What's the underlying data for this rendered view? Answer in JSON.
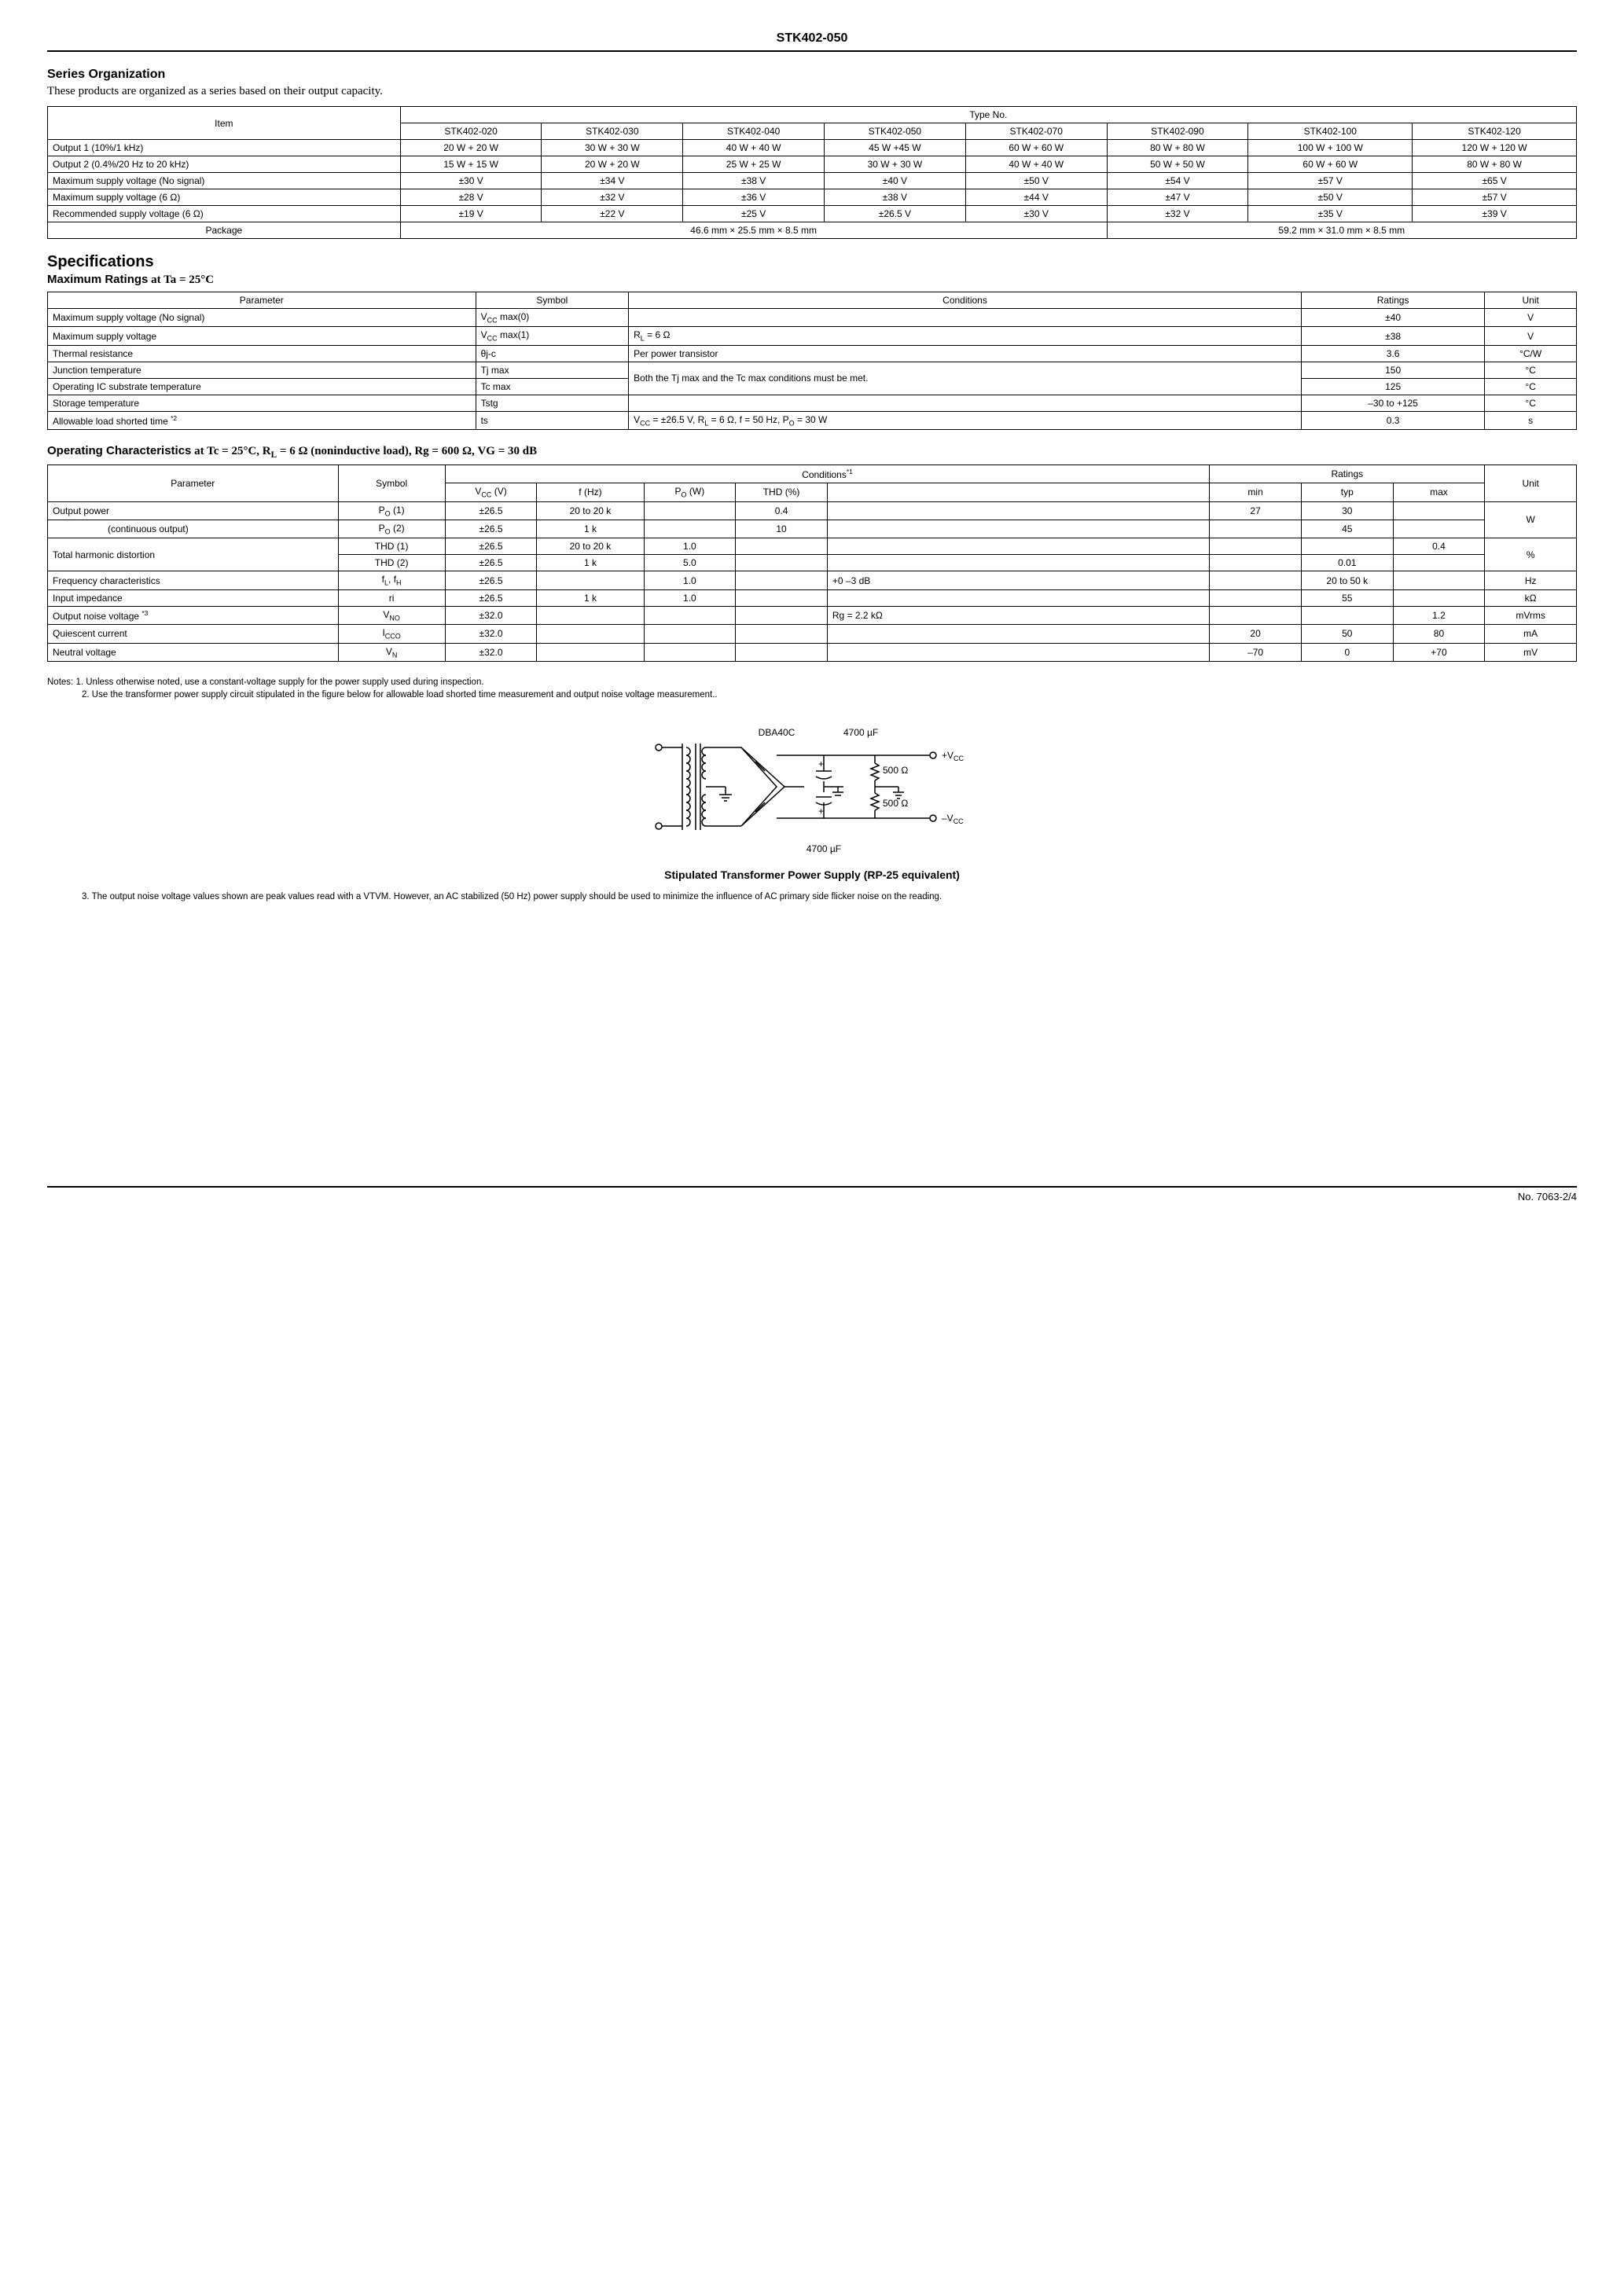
{
  "header": {
    "title": "STK402-050"
  },
  "series": {
    "heading": "Series Organization",
    "intro": "These products are organized as a series based on their output capacity.",
    "item_label": "Item",
    "type_no_label": "Type No.",
    "models": [
      "STK402-020",
      "STK402-030",
      "STK402-040",
      "STK402-050",
      "STK402-070",
      "STK402-090",
      "STK402-100",
      "STK402-120"
    ],
    "rows": [
      {
        "label": "Output 1 (10%/1 kHz)",
        "vals": [
          "20 W + 20 W",
          "30 W + 30 W",
          "40 W + 40 W",
          "45 W +45 W",
          "60 W + 60 W",
          "80 W + 80 W",
          "100 W + 100 W",
          "120 W + 120 W"
        ]
      },
      {
        "label": "Output 2 (0.4%/20 Hz to 20 kHz)",
        "vals": [
          "15 W + 15 W",
          "20 W + 20 W",
          "25 W + 25 W",
          "30 W + 30 W",
          "40 W + 40 W",
          "50 W + 50 W",
          "60 W + 60 W",
          "80 W + 80 W"
        ]
      },
      {
        "label": "Maximum supply voltage (No signal)",
        "vals": [
          "±30 V",
          "±34 V",
          "±38 V",
          "±40 V",
          "±50 V",
          "±54 V",
          "±57 V",
          "±65 V"
        ]
      },
      {
        "label": "Maximum supply voltage (6 Ω)",
        "vals": [
          "±28 V",
          "±32 V",
          "±36 V",
          "±38 V",
          "±44 V",
          "±47 V",
          "±50 V",
          "±57 V"
        ]
      },
      {
        "label": "Recommended supply voltage (6 Ω)",
        "vals": [
          "±19 V",
          "±22 V",
          "±25 V",
          "±26.5 V",
          "±30 V",
          "±32 V",
          "±35 V",
          "±39 V"
        ]
      }
    ],
    "package_label": "Package",
    "package1": "46.6 mm × 25.5 mm × 8.5 mm",
    "package2": "59.2 mm × 31.0 mm × 8.5 mm"
  },
  "specs_heading": "Specifications",
  "max_ratings": {
    "heading_prefix": "Maximum Ratings",
    "heading_cond": " at Ta = 25°C",
    "cols": [
      "Parameter",
      "Symbol",
      "Conditions",
      "Ratings",
      "Unit"
    ],
    "rows": [
      {
        "param": "Maximum supply voltage (No signal)",
        "sym": "V<sub>CC</sub> max(0)",
        "cond": "",
        "rat": "±40",
        "unit": "V"
      },
      {
        "param": "Maximum supply voltage",
        "sym": "V<sub>CC</sub> max(1)",
        "cond": "R<sub>L</sub> = 6 Ω",
        "rat": "±38",
        "unit": "V"
      },
      {
        "param": "Thermal resistance",
        "sym": "θj-c",
        "cond": "Per power transistor",
        "rat": "3.6",
        "unit": "°C/W"
      },
      {
        "param": "Junction temperature",
        "sym": "Tj max",
        "cond": "__SPAN__",
        "rat": "150",
        "unit": "°C"
      },
      {
        "param": "Operating IC substrate temperature",
        "sym": "Tc max",
        "cond": "",
        "rat": "125",
        "unit": "°C"
      },
      {
        "param": "Storage temperature",
        "sym": "Tstg",
        "cond": "",
        "rat": "–30 to +125",
        "unit": "°C"
      },
      {
        "param": "Allowable load shorted time <span class='sup'>*2</span>",
        "sym": "ts",
        "cond": "V<sub>CC</sub> = ±26.5 V, R<sub>L</sub> = 6 Ω, f = 50 Hz, P<sub>O</sub> = 30 W",
        "rat": "0.3",
        "unit": "s"
      }
    ],
    "span_cond": "Both the Tj max and the Tc max conditions must be met."
  },
  "op_char": {
    "heading_prefix": "Operating Characteristics",
    "heading_cond": " at Tc = 25°C, R<sub>L</sub> = 6 Ω (noninductive load), Rg = 600 Ω, VG = 30 dB",
    "hdr": {
      "param": "Parameter",
      "sym": "Symbol",
      "cond": "Conditions<span class='sup'>*1</span>",
      "ratings": "Ratings",
      "unit": "Unit",
      "vcc": "V<sub>CC</sub> (V)",
      "fhz": "f (Hz)",
      "pow": "P<sub>O</sub> (W)",
      "thd": "THD (%)",
      "blank": "",
      "min": "min",
      "typ": "typ",
      "max": "max"
    },
    "rows": [
      {
        "param": "Output power",
        "sym": "P<sub>O</sub> (1)",
        "vcc": "±26.5",
        "f": "20 to 20 k",
        "po": "",
        "thd": "0.4",
        "extra": "",
        "min": "27",
        "typ": "30",
        "max": "",
        "unit": "W",
        "unit_rowspan": 2,
        "param_rowspan": 1
      },
      {
        "param": "<span style='padding-left:70px'>(continuous output)</span>",
        "sym": "P<sub>O</sub> (2)",
        "vcc": "±26.5",
        "f": "1 k",
        "po": "",
        "thd": "10",
        "extra": "",
        "min": "",
        "typ": "45",
        "max": ""
      },
      {
        "param": "Total harmonic distortion",
        "sym": "THD (1)",
        "vcc": "±26.5",
        "f": "20 to 20 k",
        "po": "1.0",
        "thd": "",
        "extra": "",
        "min": "",
        "typ": "",
        "max": "0.4",
        "unit": "%",
        "unit_rowspan": 2,
        "param_rowspan": 2
      },
      {
        "sym": "THD (2)",
        "vcc": "±26.5",
        "f": "1 k",
        "po": "5.0",
        "thd": "",
        "extra": "",
        "min": "",
        "typ": "0.01",
        "max": ""
      },
      {
        "param": "Frequency characteristics",
        "sym": "f<sub>L</sub>, f<sub>H</sub>",
        "vcc": "±26.5",
        "f": "",
        "po": "1.0",
        "thd": "",
        "extra": "+0  –3 dB",
        "min": "",
        "typ": "20 to 50 k",
        "max": "",
        "unit": "Hz"
      },
      {
        "param": "Input impedance",
        "sym": "ri",
        "vcc": "±26.5",
        "f": "1 k",
        "po": "1.0",
        "thd": "",
        "extra": "",
        "min": "",
        "typ": "55",
        "max": "",
        "unit": "kΩ"
      },
      {
        "param": "Output noise voltage <span class='sup'>*3</span>",
        "sym": "V<sub>NO</sub>",
        "vcc": "±32.0",
        "f": "",
        "po": "",
        "thd": "",
        "extra": "Rg = 2.2 kΩ",
        "min": "",
        "typ": "",
        "max": "1.2",
        "unit": "mVrms"
      },
      {
        "param": "Quiescent current",
        "sym": "I<sub>CCO</sub>",
        "vcc": "±32.0",
        "f": "",
        "po": "",
        "thd": "",
        "extra": "",
        "min": "20",
        "typ": "50",
        "max": "80",
        "unit": "mA"
      },
      {
        "param": "Neutral voltage",
        "sym": "V<sub>N</sub>",
        "vcc": "±32.0",
        "f": "",
        "po": "",
        "thd": "",
        "extra": "",
        "min": "–70",
        "typ": "0",
        "max": "+70",
        "unit": "mV"
      }
    ]
  },
  "notes": {
    "prefix": "Notes:",
    "n1": "1. Unless otherwise noted, use a constant-voltage supply for the power supply used during inspection.",
    "n2": "2. Use the transformer power supply circuit stipulated in the figure below for allowable load shorted time measurement and output noise voltage measurement..",
    "n3": "3. The output noise voltage values shown are peak values read with a VTVM. However, an AC stabilized (50 Hz) power supply should be used to minimize the influence of AC primary side flicker noise on the reading."
  },
  "diagram": {
    "caption": "Stipulated Transformer Power Supply (RP-25 equivalent)",
    "labels": {
      "dba": "DBA40C",
      "cap1": "4700 µF",
      "cap2": "4700 µF",
      "r1": "500 Ω",
      "r2": "500 Ω",
      "vccp": "+V",
      "vccn": "–V",
      "cc": "CC"
    }
  },
  "footer": {
    "page": "No. 7063-2/4"
  }
}
